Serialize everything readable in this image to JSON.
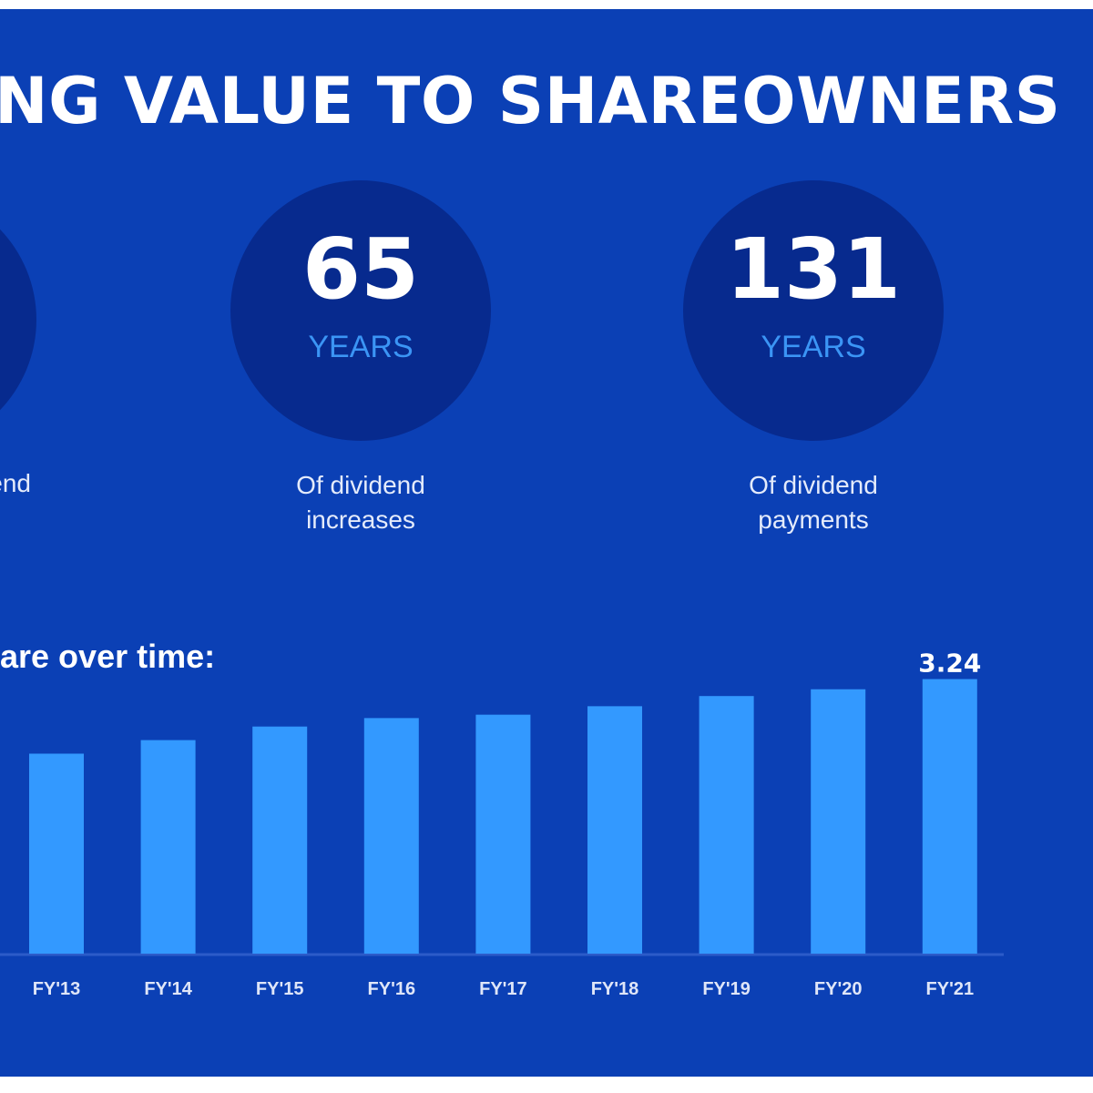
{
  "header": {
    "title": "NG VALUE TO SHAREOWNERS"
  },
  "stats": [
    {
      "number": "",
      "unit": "",
      "desc_line1": "end",
      "desc_line2": ""
    },
    {
      "number": "65",
      "unit": "YEARS",
      "desc_line1": "Of dividend",
      "desc_line2": "increases"
    },
    {
      "number": "131",
      "unit": "YEARS",
      "desc_line1": "Of dividend",
      "desc_line2": "payments"
    }
  ],
  "chart_data": {
    "type": "bar",
    "title": "are over time:",
    "categories": [
      "FY'13",
      "FY'14",
      "FY'15",
      "FY'16",
      "FY'17",
      "FY'18",
      "FY'19",
      "FY'20",
      "FY'21"
    ],
    "values": [
      2.36,
      2.52,
      2.68,
      2.78,
      2.82,
      2.92,
      3.04,
      3.12,
      3.24
    ],
    "data_labels": {
      "FY'21": "3.24"
    },
    "ylim": [
      0,
      3.3
    ],
    "grid": false,
    "colors": {
      "bar": "#3399ff",
      "axis": "#2c5bc9",
      "tick_label": "#dfe6f8",
      "background": "#0b40b5"
    }
  }
}
